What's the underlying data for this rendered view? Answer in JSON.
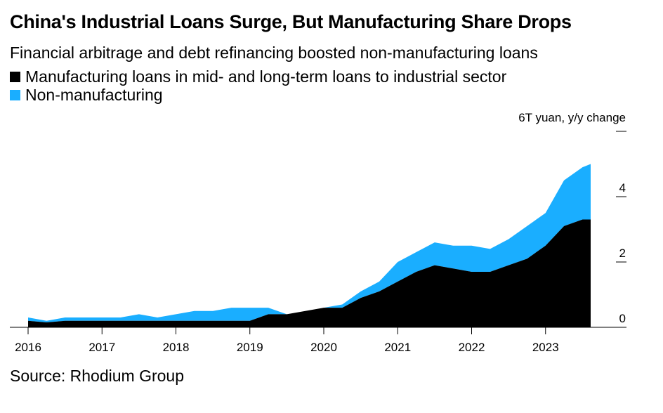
{
  "header": {
    "title": "China's Industrial Loans Surge, But Manufacturing Share Drops",
    "subtitle": "Financial arbitrage and debt refinancing boosted non-manufacturing loans"
  },
  "legend": {
    "items": [
      {
        "label": "Manufacturing loans in mid- and long-term loans to industrial sector",
        "color": "#000000"
      },
      {
        "label": "Non-manufacturing",
        "color": "#1aaeff"
      }
    ]
  },
  "footer": {
    "source": "Source: Rhodium Group"
  },
  "chart_data": {
    "type": "area",
    "stacked": true,
    "ylabel": "6T yuan, y/y change",
    "ylim": [
      0,
      6
    ],
    "yticks": [
      0,
      2,
      4,
      6
    ],
    "ytick_labels": [
      "0",
      "2",
      "4",
      ""
    ],
    "xlim": [
      2016,
      2024
    ],
    "xticks": [
      2016,
      2017,
      2018,
      2019,
      2020,
      2021,
      2022,
      2023
    ],
    "xtick_labels": [
      "2016",
      "2017",
      "2018",
      "2019",
      "2020",
      "2021",
      "2022",
      "2023"
    ],
    "grid": false,
    "legend_position": "top-left",
    "x": [
      2016.0,
      2016.25,
      2016.5,
      2016.75,
      2017.0,
      2017.25,
      2017.5,
      2017.75,
      2018.0,
      2018.25,
      2018.5,
      2018.75,
      2019.0,
      2019.25,
      2019.5,
      2019.75,
      2020.0,
      2020.25,
      2020.5,
      2020.75,
      2021.0,
      2021.25,
      2021.5,
      2021.75,
      2022.0,
      2022.25,
      2022.5,
      2022.75,
      2023.0,
      2023.25,
      2023.5,
      2023.75,
      2024.0
    ],
    "series": [
      {
        "name": "Manufacturing loans in mid- and long-term loans to industrial sector",
        "color": "#000000",
        "values": [
          0.2,
          0.15,
          0.2,
          0.2,
          0.2,
          0.2,
          0.2,
          0.2,
          0.2,
          0.2,
          0.2,
          0.2,
          0.2,
          0.4,
          0.4,
          0.5,
          0.6,
          0.6,
          0.9,
          1.1,
          1.4,
          1.7,
          1.9,
          1.8,
          1.7,
          1.7,
          1.9,
          2.1,
          2.5,
          3.1,
          3.3,
          3.3,
          3.0
        ]
      },
      {
        "name": "Non-manufacturing",
        "color": "#1aaeff",
        "values": [
          0.1,
          0.05,
          0.1,
          0.1,
          0.1,
          0.1,
          0.2,
          0.1,
          0.2,
          0.3,
          0.3,
          0.4,
          0.4,
          0.2,
          0.0,
          0.0,
          0.0,
          0.1,
          0.2,
          0.3,
          0.6,
          0.6,
          0.7,
          0.7,
          0.8,
          0.7,
          0.8,
          1.0,
          1.0,
          1.4,
          1.6,
          1.7,
          1.7
        ]
      }
    ]
  }
}
